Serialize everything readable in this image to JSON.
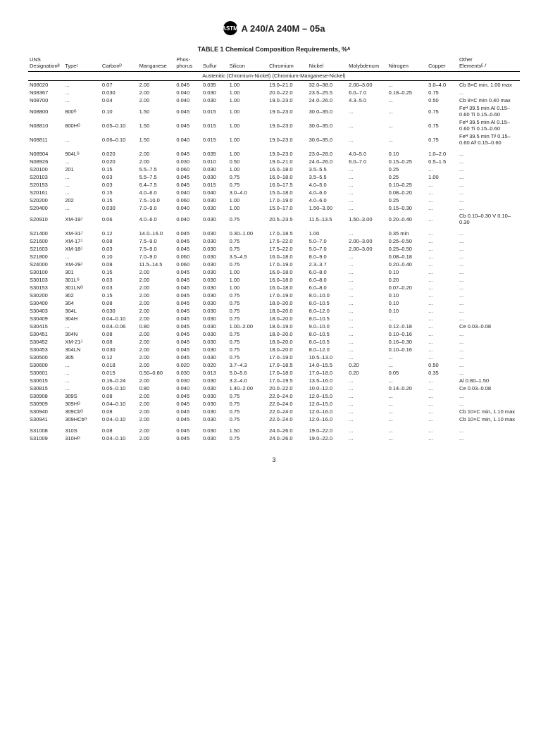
{
  "doc_header": "A 240/A 240M – 05a",
  "logo_text": "ASTM",
  "table_title": "TABLE 1  Chemical Composition Requirements, %ᴬ",
  "group_title": "Austenitic (Chromium-Nickel) (Chromium-Manganese-Nickel)",
  "page_number": "3",
  "columns": [
    {
      "key": "uns",
      "label": "UNS\nDesignationᴮ"
    },
    {
      "key": "type",
      "label": "Typeᶜ"
    },
    {
      "key": "c",
      "label": "Carbonᴰ"
    },
    {
      "key": "mn",
      "label": "Manganese"
    },
    {
      "key": "p",
      "label": "Phos-\nphorus"
    },
    {
      "key": "s",
      "label": "Sulfur"
    },
    {
      "key": "si",
      "label": "Silicon"
    },
    {
      "key": "cr",
      "label": "Chromium"
    },
    {
      "key": "ni",
      "label": "Nickel"
    },
    {
      "key": "mo",
      "label": "Molybdenum"
    },
    {
      "key": "n",
      "label": "Nitrogen"
    },
    {
      "key": "cu",
      "label": "Copper"
    },
    {
      "key": "other",
      "label": "Other\nElementsᴱ·ᶠ"
    }
  ],
  "groups": [
    [
      {
        "uns": "N08020",
        "type": "...",
        "c": "0.07",
        "mn": "2.00",
        "p": "0.045",
        "s": "0.035",
        "si": "1.00",
        "cr": "19.0–21.0",
        "ni": "32.0–38.0",
        "mo": "2.00–3.00",
        "n": "...",
        "cu": "3.0–4.0",
        "other": "Cb 8×C min, 1.00 max"
      },
      {
        "uns": "N08367",
        "type": "...",
        "c": "0.030",
        "mn": "2.00",
        "p": "0.040",
        "s": "0.030",
        "si": "1.00",
        "cr": "20.0–22.0",
        "ni": "23.5–25.5",
        "mo": "6.0–7.0",
        "n": "0.18–0.25",
        "cu": "0.75",
        "other": "..."
      },
      {
        "uns": "N08700",
        "type": "...",
        "c": "0.04",
        "mn": "2.00",
        "p": "0.040",
        "s": "0.030",
        "si": "1.00",
        "cr": "19.0–23.0",
        "ni": "24.0–26.0",
        "mo": "4.3–5.0",
        "n": "...",
        "cu": "0.50",
        "other": "Cb 8×C min 0.40 max"
      },
      {
        "uns": "N08800",
        "type": "800ᴳ",
        "c": "0.10",
        "mn": "1.50",
        "p": "0.045",
        "s": "0.015",
        "si": "1.00",
        "cr": "19.0–23.0",
        "ni": "30.0–35.0",
        "mo": "...",
        "n": "...",
        "cu": "0.75",
        "other": "Feᴴ 39.5 min Al 0.15–0.60 Ti 0.15–0.60"
      },
      {
        "uns": "N08810",
        "type": "800Hᴳ",
        "c": "0.05–0.10",
        "mn": "1.50",
        "p": "0.045",
        "s": "0.015",
        "si": "1.00",
        "cr": "19.0–23.0",
        "ni": "30.0–35.0",
        "mo": "...",
        "n": "...",
        "cu": "0.75",
        "other": "Feᴴ 39.5 min Al 0.15–0.60 Ti 0.15–0.60"
      },
      {
        "uns": "N08811",
        "type": "...",
        "c": "0.06–0.10",
        "mn": "1.50",
        "p": "0.040",
        "s": "0.015",
        "si": "1.00",
        "cr": "19.0–23.0",
        "ni": "30.0–35.0",
        "mo": "...",
        "n": "...",
        "cu": "0.75",
        "other": "Feᴴ 39.5 min Tiᴵ 0.15–0.60 Alᴵ 0.15–0.60"
      }
    ],
    [
      {
        "uns": "N08904",
        "type": "904Lᴳ",
        "c": "0.020",
        "mn": "2.00",
        "p": "0.045",
        "s": "0.035",
        "si": "1.00",
        "cr": "19.0–23.0",
        "ni": "23.0–28.0",
        "mo": "4.0–5.0",
        "n": "0.10",
        "cu": "1.0–2.0",
        "other": "..."
      },
      {
        "uns": "N08926",
        "type": "...",
        "c": "0.020",
        "mn": "2.00",
        "p": "0.030",
        "s": "0.010",
        "si": "0.50",
        "cr": "19.0–21.0",
        "ni": "24.0–26.0",
        "mo": "6.0–7.0",
        "n": "0.15–0.25",
        "cu": "0.5–1.5",
        "other": "..."
      },
      {
        "uns": "S20100",
        "type": "201",
        "c": "0.15",
        "mn": "5.5–7.5",
        "p": "0.060",
        "s": "0.030",
        "si": "1.00",
        "cr": "16.0–18.0",
        "ni": "3.5–5.5",
        "mo": "...",
        "n": "0.25",
        "cu": "...",
        "other": "..."
      },
      {
        "uns": "S20103",
        "type": "...",
        "c": "0.03",
        "mn": "5.5–7.5",
        "p": "0.045",
        "s": "0.030",
        "si": "0.75",
        "cr": "16.0–18.0",
        "ni": "3.5–5.5",
        "mo": "...",
        "n": "0.25",
        "cu": "1.00",
        "other": "..."
      },
      {
        "uns": "S20153",
        "type": "...",
        "c": "0.03",
        "mn": "6.4–7.5",
        "p": "0.045",
        "s": "0.015",
        "si": "0.75",
        "cr": "16.0–17.5",
        "ni": "4.0–5.0",
        "mo": "...",
        "n": "0.10–0.25",
        "cu": "...",
        "other": "..."
      },
      {
        "uns": "S20161",
        "type": "...",
        "c": "0.15",
        "mn": "4.0–6.0",
        "p": "0.040",
        "s": "0.040",
        "si": "3.0–4.0",
        "cr": "15.0–18.0",
        "ni": "4.0–6.0",
        "mo": "...",
        "n": "0.08–0.20",
        "cu": "...",
        "other": "..."
      },
      {
        "uns": "S20200",
        "type": "202",
        "c": "0.15",
        "mn": "7.5–10.0",
        "p": "0.060",
        "s": "0.030",
        "si": "1.00",
        "cr": "17.0–19.0",
        "ni": "4.0–6.0",
        "mo": "...",
        "n": "0.25",
        "cu": "...",
        "other": "..."
      },
      {
        "uns": "S20400",
        "type": "...",
        "c": "0.030",
        "mn": "7.0–9.0",
        "p": "0.040",
        "s": "0.030",
        "si": "1.00",
        "cr": "15.0–17.0",
        "ni": "1.50–3.00",
        "mo": "...",
        "n": "0.15–0.30",
        "cu": "...",
        "other": "..."
      },
      {
        "uns": "S20910",
        "type": "XM-19ᴶ",
        "c": "0.06",
        "mn": "4.0–6.0",
        "p": "0.040",
        "s": "0.030",
        "si": "0.75",
        "cr": "20.5–23.5",
        "ni": "11.5–13.5",
        "mo": "1.50–3.00",
        "n": "0.20–0.40",
        "cu": "...",
        "other": "Cb 0.10–0.30 V 0.10–0.30"
      }
    ],
    [
      {
        "uns": "S21400",
        "type": "XM-31ᴶ",
        "c": "0.12",
        "mn": "14.0–16.0",
        "p": "0.045",
        "s": "0.030",
        "si": "0.30–1.00",
        "cr": "17.0–18.5",
        "ni": "1.00",
        "mo": "...",
        "n": "0.35 min",
        "cu": "...",
        "other": "..."
      },
      {
        "uns": "S21600",
        "type": "XM-17ᴶ",
        "c": "0.08",
        "mn": "7.5–9.0",
        "p": "0.045",
        "s": "0.030",
        "si": "0.75",
        "cr": "17.5–22.0",
        "ni": "5.0–7.0",
        "mo": "2.00–3.00",
        "n": "0.25–0.50",
        "cu": "...",
        "other": "..."
      },
      {
        "uns": "S21603",
        "type": "XM-18ᴶ",
        "c": "0.03",
        "mn": "7.5–9.0",
        "p": "0.045",
        "s": "0.030",
        "si": "0.75",
        "cr": "17.5–22.0",
        "ni": "5.0–7.0",
        "mo": "2.00–3.00",
        "n": "0.25–0.50",
        "cu": "...",
        "other": "..."
      },
      {
        "uns": "S21800",
        "type": "...",
        "c": "0.10",
        "mn": "7.0–9.0",
        "p": "0.060",
        "s": "0.030",
        "si": "3.5–4.5",
        "cr": "16.0–18.0",
        "ni": "8.0–9.0",
        "mo": "...",
        "n": "0.08–0.18",
        "cu": "...",
        "other": "..."
      },
      {
        "uns": "S24000",
        "type": "XM-29ᴶ",
        "c": "0.08",
        "mn": "11.5–14.5",
        "p": "0.060",
        "s": "0.030",
        "si": "0.75",
        "cr": "17.0–19.0",
        "ni": "2.3–3.7",
        "mo": "...",
        "n": "0.20–0.40",
        "cu": "...",
        "other": "..."
      },
      {
        "uns": "S30100",
        "type": "301",
        "c": "0.15",
        "mn": "2.00",
        "p": "0.045",
        "s": "0.030",
        "si": "1.00",
        "cr": "16.0–18.0",
        "ni": "6.0–8.0",
        "mo": "...",
        "n": "0.10",
        "cu": "...",
        "other": "..."
      },
      {
        "uns": "S30103",
        "type": "301Lᴳ",
        "c": "0.03",
        "mn": "2.00",
        "p": "0.045",
        "s": "0.030",
        "si": "1.00",
        "cr": "16.0–18.0",
        "ni": "6.0–8.0",
        "mo": "...",
        "n": "0.20",
        "cu": "...",
        "other": "..."
      },
      {
        "uns": "S30153",
        "type": "301LNᴳ",
        "c": "0.03",
        "mn": "2.00",
        "p": "0.045",
        "s": "0.030",
        "si": "1.00",
        "cr": "16.0–18.0",
        "ni": "6.0–8.0",
        "mo": "...",
        "n": "0.07–0.20",
        "cu": "...",
        "other": "..."
      },
      {
        "uns": "S30200",
        "type": "302",
        "c": "0.15",
        "mn": "2.00",
        "p": "0.045",
        "s": "0.030",
        "si": "0.75",
        "cr": "17.0–19.0",
        "ni": "8.0–10.0",
        "mo": "...",
        "n": "0.10",
        "cu": "...",
        "other": "..."
      },
      {
        "uns": "S30400",
        "type": "304",
        "c": "0.08",
        "mn": "2.00",
        "p": "0.045",
        "s": "0.030",
        "si": "0.75",
        "cr": "18.0–20.0",
        "ni": "8.0–10.5",
        "mo": "...",
        "n": "0.10",
        "cu": "...",
        "other": "..."
      },
      {
        "uns": "S30403",
        "type": "304L",
        "c": "0.030",
        "mn": "2.00",
        "p": "0.045",
        "s": "0.030",
        "si": "0.75",
        "cr": "18.0–20.0",
        "ni": "8.0–12.0",
        "mo": "...",
        "n": "0.10",
        "cu": "...",
        "other": "..."
      },
      {
        "uns": "S30409",
        "type": "304H",
        "c": "0.04–0.10",
        "mn": "2.00",
        "p": "0.045",
        "s": "0.030",
        "si": "0.75",
        "cr": "18.0–20.0",
        "ni": "8.0–10.5",
        "mo": "...",
        "n": "...",
        "cu": "...",
        "other": "..."
      },
      {
        "uns": "S30415",
        "type": "...",
        "c": "0.04–0.06",
        "mn": "0.80",
        "p": "0.045",
        "s": "0.030",
        "si": "1.00–2.00",
        "cr": "18.0–19.0",
        "ni": "9.0–10.0",
        "mo": "...",
        "n": "0.12–0.18",
        "cu": "...",
        "other": "Ce 0.03–0.08"
      },
      {
        "uns": "S30451",
        "type": "304N",
        "c": "0.08",
        "mn": "2.00",
        "p": "0.045",
        "s": "0.030",
        "si": "0.75",
        "cr": "18.0–20.0",
        "ni": "8.0–10.5",
        "mo": "...",
        "n": "0.10–0.16",
        "cu": "...",
        "other": "..."
      },
      {
        "uns": "S30452",
        "type": "XM-21ᴶ",
        "c": "0.08",
        "mn": "2.00",
        "p": "0.045",
        "s": "0.030",
        "si": "0.75",
        "cr": "18.0–20.0",
        "ni": "8.0–10.5",
        "mo": "...",
        "n": "0.16–0.30",
        "cu": "...",
        "other": "..."
      },
      {
        "uns": "S30453",
        "type": "304LN",
        "c": "0.030",
        "mn": "2.00",
        "p": "0.045",
        "s": "0.030",
        "si": "0.75",
        "cr": "18.0–20.0",
        "ni": "8.0–12.0",
        "mo": "...",
        "n": "0.10–0.16",
        "cu": "...",
        "other": "..."
      },
      {
        "uns": "S30500",
        "type": "305",
        "c": "0.12",
        "mn": "2.00",
        "p": "0.045",
        "s": "0.030",
        "si": "0.75",
        "cr": "17.0–19.0",
        "ni": "10.5–13.0",
        "mo": "...",
        "n": "...",
        "cu": "...",
        "other": "..."
      },
      {
        "uns": "S30600",
        "type": "...",
        "c": "0.018",
        "mn": "2.00",
        "p": "0.020",
        "s": "0.020",
        "si": "3.7–4.3",
        "cr": "17.0–18.5",
        "ni": "14.0–15.5",
        "mo": "0.20",
        "n": "...",
        "cu": "0.50",
        "other": "..."
      },
      {
        "uns": "S30601",
        "type": "...",
        "c": "0.015",
        "mn": "0.50–0.80",
        "p": "0.030",
        "s": "0.013",
        "si": "5.0–5.6",
        "cr": "17.0–18.0",
        "ni": "17.0–18.0",
        "mo": "0.20",
        "n": "0.05",
        "cu": "0.35",
        "other": "..."
      },
      {
        "uns": "S30615",
        "type": "...",
        "c": "0.16–0.24",
        "mn": "2.00",
        "p": "0.030",
        "s": "0.030",
        "si": "3.2–4.0",
        "cr": "17.0–19.5",
        "ni": "13.5–16.0",
        "mo": "...",
        "n": "...",
        "cu": "...",
        "other": "Al 0.80–1.50"
      },
      {
        "uns": "S30815",
        "type": "...",
        "c": "0.05–0.10",
        "mn": "0.80",
        "p": "0.040",
        "s": "0.030",
        "si": "1.40–2.00",
        "cr": "20.0–22.0",
        "ni": "10.0–12.0",
        "mo": "...",
        "n": "0.14–0.20",
        "cu": "...",
        "other": "Ce 0.03–0.08"
      },
      {
        "uns": "S30908",
        "type": "309S",
        "c": "0.08",
        "mn": "2.00",
        "p": "0.045",
        "s": "0.030",
        "si": "0.75",
        "cr": "22.0–24.0",
        "ni": "12.0–15.0",
        "mo": "...",
        "n": "...",
        "cu": "...",
        "other": "..."
      },
      {
        "uns": "S30909",
        "type": "309Hᴳ",
        "c": "0.04–0.10",
        "mn": "2.00",
        "p": "0.045",
        "s": "0.030",
        "si": "0.75",
        "cr": "22.0–24.0",
        "ni": "12.0–15.0",
        "mo": "...",
        "n": "...",
        "cu": "...",
        "other": "..."
      },
      {
        "uns": "S30940",
        "type": "309Cbᴳ",
        "c": "0.08",
        "mn": "2.00",
        "p": "0.045",
        "s": "0.030",
        "si": "0.75",
        "cr": "22.0–24.0",
        "ni": "12.0–16.0",
        "mo": "...",
        "n": "...",
        "cu": "...",
        "other": "Cb 10×C min, 1.10 max"
      },
      {
        "uns": "S30941",
        "type": "309HCbᴳ",
        "c": "0.04–0.10",
        "mn": "2.00",
        "p": "0.045",
        "s": "0.030",
        "si": "0.75",
        "cr": "22.0–24.0",
        "ni": "12.0–16.0",
        "mo": "...",
        "n": "...",
        "cu": "...",
        "other": "Cb 10×C min, 1.10 max"
      }
    ],
    [
      {
        "uns": "S31008",
        "type": "310S",
        "c": "0.08",
        "mn": "2.00",
        "p": "0.045",
        "s": "0.030",
        "si": "1.50",
        "cr": "24.0–26.0",
        "ni": "19.0–22.0",
        "mo": "...",
        "n": "...",
        "cu": "...",
        "other": "..."
      },
      {
        "uns": "S31009",
        "type": "310Hᴳ",
        "c": "0.04–0.10",
        "mn": "2.00",
        "p": "0.045",
        "s": "0.030",
        "si": "0.75",
        "cr": "24.0–26.0",
        "ni": "19.0–22.0",
        "mo": "...",
        "n": "...",
        "cu": "...",
        "other": "..."
      }
    ]
  ]
}
